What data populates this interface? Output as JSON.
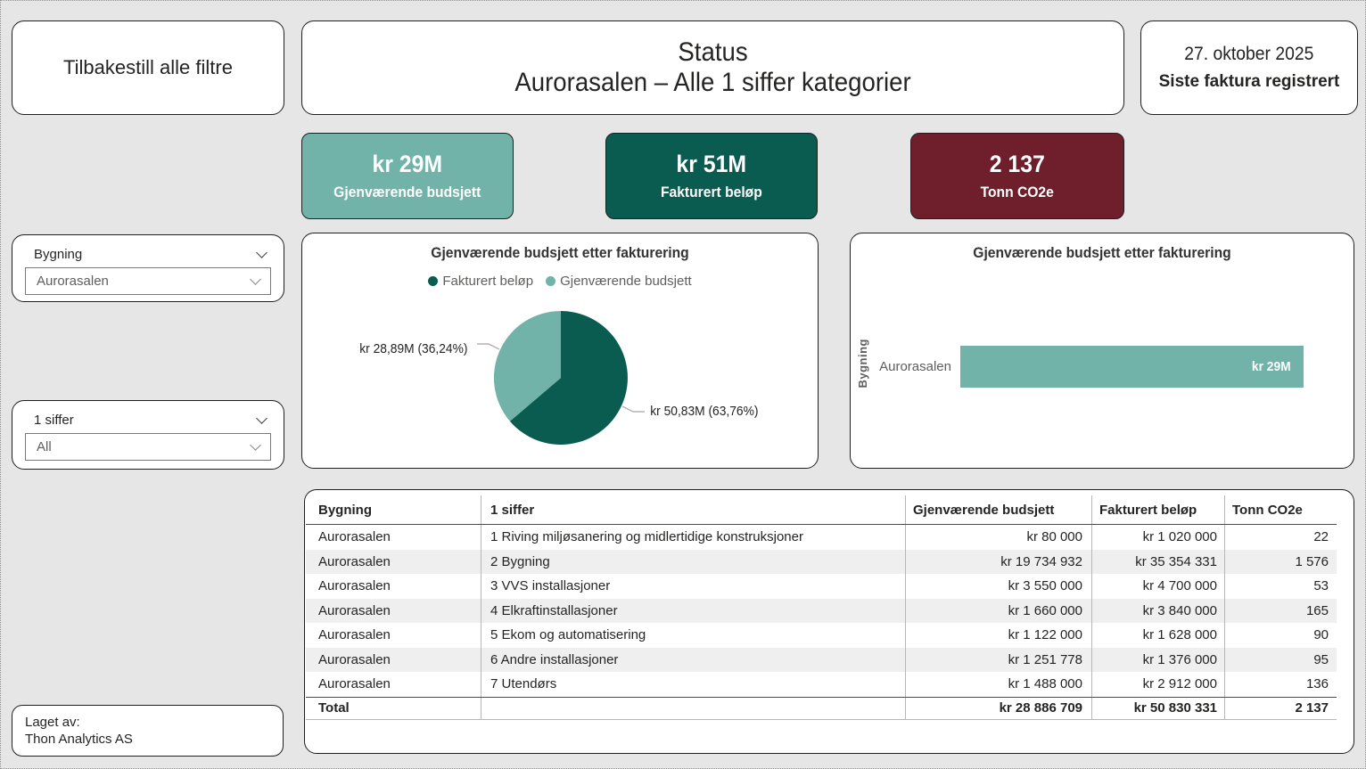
{
  "header": {
    "reset_button": "Tilbakestill alle filtre",
    "title_line1": "Status",
    "title_line2": "Aurorasalen – Alle 1 siffer kategorier",
    "date_value": "27. oktober 2025",
    "date_label": "Siste faktura registrert"
  },
  "kpis": [
    {
      "value": "kr 29M",
      "label": "Gjenværende budsjett",
      "color": "#72B3A9"
    },
    {
      "value": "kr 51M",
      "label": "Fakturert beløp",
      "color": "#0A5B50"
    },
    {
      "value": "2 137",
      "label": "Tonn CO2e",
      "color": "#6E1F2B"
    }
  ],
  "slicers": [
    {
      "label": "Bygning",
      "value": "Aurorasalen"
    },
    {
      "label": "1 siffer",
      "value": "All"
    }
  ],
  "chart_data": [
    {
      "type": "pie",
      "title": "Gjenværende budsjett etter fakturering",
      "legend": [
        "Fakturert beløp",
        "Gjenværende budsjett"
      ],
      "legend_position": "top",
      "slices": [
        {
          "name": "Fakturert beløp",
          "value": 50830331,
          "pct": 63.76,
          "value_label": "kr 50,83M (63,76%)",
          "color": "#0A5B50"
        },
        {
          "name": "Gjenværende budsjett",
          "value": 28886709,
          "pct": 36.24,
          "value_label": "kr 28,89M (36,24%)",
          "color": "#72B3A9"
        }
      ]
    },
    {
      "type": "bar",
      "title": "Gjenværende budsjett etter fakturering",
      "orientation": "horizontal",
      "ylabel": "Bygning",
      "categories": [
        "Aurorasalen"
      ],
      "values": [
        28886709
      ],
      "value_labels": [
        "kr 29M"
      ],
      "color": "#72B3A9"
    }
  ],
  "table": {
    "columns": [
      "Bygning",
      "1 siffer",
      "Gjenværende budsjett",
      "Fakturert beløp",
      "Tonn CO2e"
    ],
    "rows": [
      [
        "Aurorasalen",
        "1 Riving miljøsanering og midlertidige konstruksjoner",
        "kr 80 000",
        "kr 1 020 000",
        "22"
      ],
      [
        "Aurorasalen",
        "2 Bygning",
        "kr 19 734 932",
        "kr 35 354 331",
        "1 576"
      ],
      [
        "Aurorasalen",
        "3 VVS installasjoner",
        "kr 3 550 000",
        "kr 4 700 000",
        "53"
      ],
      [
        "Aurorasalen",
        "4 Elkraftinstallasjoner",
        "kr 1 660 000",
        "kr 3 840 000",
        "165"
      ],
      [
        "Aurorasalen",
        "5 Ekom og automatisering",
        "kr 1 122 000",
        "kr 1 628 000",
        "90"
      ],
      [
        "Aurorasalen",
        "6 Andre installasjoner",
        "kr 1 251 778",
        "kr 1 376 000",
        "95"
      ],
      [
        "Aurorasalen",
        "7 Utendørs",
        "kr 1 488 000",
        "kr 2 912 000",
        "136"
      ]
    ],
    "total": [
      "Total",
      "",
      "kr 28 886 709",
      "kr 50 830 331",
      "2 137"
    ]
  },
  "footer": {
    "line1": "Laget av:",
    "line2": "Thon Analytics AS"
  }
}
